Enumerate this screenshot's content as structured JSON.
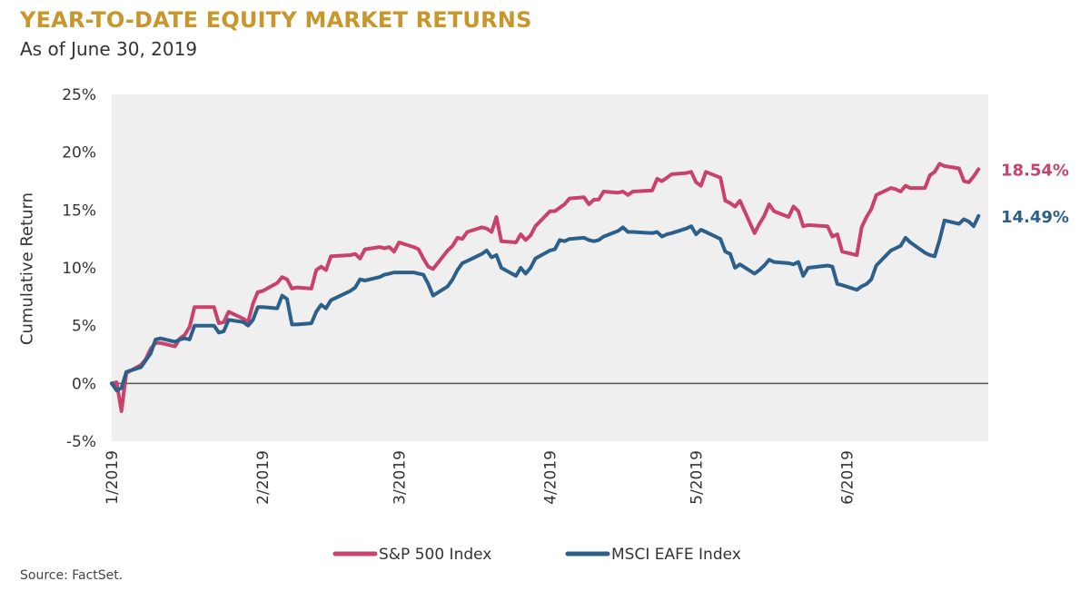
{
  "title": "YEAR-TO-DATE EQUITY MARKET RETURNS",
  "subtitle": "As of June 30, 2019",
  "source": "Source: FactSet.",
  "chart_data": {
    "type": "line",
    "ylabel": "Cumulative Return",
    "xlabel": "",
    "ylim": [
      -5,
      25
    ],
    "yticks": [
      -5,
      0,
      5,
      10,
      15,
      20,
      25
    ],
    "ytick_labels": [
      "-5%",
      "0%",
      "5%",
      "10%",
      "15%",
      "20%",
      "25%"
    ],
    "x_axis": {
      "start": "2019-01-01",
      "end": "2019-06-30"
    },
    "xticks": [
      "2019-01-01",
      "2019-02-01",
      "2019-03-01",
      "2019-04-01",
      "2019-05-01",
      "2019-06-01"
    ],
    "xtick_labels": [
      "1/2019",
      "2/2019",
      "3/2019",
      "4/2019",
      "5/2019",
      "6/2019"
    ],
    "grid": false,
    "background": "#EFEFEF",
    "legend_position": "bottom",
    "series": [
      {
        "name": "S&P 500 Index",
        "color": "#C8426B",
        "end_label": "18.54%",
        "points": [
          [
            "2019-01-01",
            0
          ],
          [
            "2019-01-02",
            0.1
          ],
          [
            "2019-01-03",
            -2.4
          ],
          [
            "2019-01-04",
            0.9
          ],
          [
            "2019-01-07",
            1.6
          ],
          [
            "2019-01-08",
            2.1
          ],
          [
            "2019-01-09",
            3.0
          ],
          [
            "2019-01-10",
            3.5
          ],
          [
            "2019-01-11",
            3.5
          ],
          [
            "2019-01-14",
            3.2
          ],
          [
            "2019-01-15",
            3.9
          ],
          [
            "2019-01-16",
            4.2
          ],
          [
            "2019-01-17",
            4.9
          ],
          [
            "2019-01-18",
            6.6
          ],
          [
            "2019-01-22",
            6.6
          ],
          [
            "2019-01-23",
            5.2
          ],
          [
            "2019-01-24",
            5.3
          ],
          [
            "2019-01-25",
            6.2
          ],
          [
            "2019-01-28",
            5.6
          ],
          [
            "2019-01-29",
            5.3
          ],
          [
            "2019-01-30",
            6.9
          ],
          [
            "2019-01-31",
            7.9
          ],
          [
            "2019-02-01",
            8.0
          ],
          [
            "2019-02-04",
            8.7
          ],
          [
            "2019-02-05",
            9.2
          ],
          [
            "2019-02-06",
            9.0
          ],
          [
            "2019-02-07",
            8.2
          ],
          [
            "2019-02-08",
            8.3
          ],
          [
            "2019-02-11",
            8.2
          ],
          [
            "2019-02-12",
            9.8
          ],
          [
            "2019-02-13",
            10.1
          ],
          [
            "2019-02-14",
            9.8
          ],
          [
            "2019-02-15",
            11.0
          ],
          [
            "2019-02-19",
            11.1
          ],
          [
            "2019-02-20",
            11.2
          ],
          [
            "2019-02-21",
            10.8
          ],
          [
            "2019-02-22",
            11.6
          ],
          [
            "2019-02-25",
            11.8
          ],
          [
            "2019-02-26",
            11.7
          ],
          [
            "2019-02-27",
            11.8
          ],
          [
            "2019-02-28",
            11.4
          ],
          [
            "2019-03-01",
            12.2
          ],
          [
            "2019-03-04",
            11.8
          ],
          [
            "2019-03-05",
            11.6
          ],
          [
            "2019-03-06",
            10.8
          ],
          [
            "2019-03-07",
            10.1
          ],
          [
            "2019-03-08",
            9.9
          ],
          [
            "2019-03-11",
            11.5
          ],
          [
            "2019-03-12",
            11.9
          ],
          [
            "2019-03-13",
            12.6
          ],
          [
            "2019-03-14",
            12.5
          ],
          [
            "2019-03-15",
            13.1
          ],
          [
            "2019-03-18",
            13.5
          ],
          [
            "2019-03-19",
            13.4
          ],
          [
            "2019-03-20",
            13.1
          ],
          [
            "2019-03-21",
            14.4
          ],
          [
            "2019-03-22",
            12.3
          ],
          [
            "2019-03-25",
            12.2
          ],
          [
            "2019-03-26",
            12.9
          ],
          [
            "2019-03-27",
            12.4
          ],
          [
            "2019-03-28",
            12.8
          ],
          [
            "2019-03-29",
            13.6
          ],
          [
            "2019-04-01",
            14.9
          ],
          [
            "2019-04-02",
            14.9
          ],
          [
            "2019-04-03",
            15.2
          ],
          [
            "2019-04-04",
            15.5
          ],
          [
            "2019-04-05",
            16.0
          ],
          [
            "2019-04-08",
            16.1
          ],
          [
            "2019-04-09",
            15.5
          ],
          [
            "2019-04-10",
            15.9
          ],
          [
            "2019-04-11",
            15.9
          ],
          [
            "2019-04-12",
            16.6
          ],
          [
            "2019-04-15",
            16.5
          ],
          [
            "2019-04-16",
            16.6
          ],
          [
            "2019-04-17",
            16.3
          ],
          [
            "2019-04-18",
            16.6
          ],
          [
            "2019-04-22",
            16.7
          ],
          [
            "2019-04-23",
            17.7
          ],
          [
            "2019-04-24",
            17.5
          ],
          [
            "2019-04-25",
            17.8
          ],
          [
            "2019-04-26",
            18.1
          ],
          [
            "2019-04-29",
            18.2
          ],
          [
            "2019-04-30",
            18.3
          ],
          [
            "2019-05-01",
            17.4
          ],
          [
            "2019-05-02",
            17.1
          ],
          [
            "2019-05-03",
            18.3
          ],
          [
            "2019-05-06",
            17.8
          ],
          [
            "2019-05-07",
            15.8
          ],
          [
            "2019-05-08",
            15.6
          ],
          [
            "2019-05-09",
            15.3
          ],
          [
            "2019-05-10",
            15.8
          ],
          [
            "2019-05-13",
            13.0
          ],
          [
            "2019-05-14",
            13.8
          ],
          [
            "2019-05-15",
            14.5
          ],
          [
            "2019-05-16",
            15.5
          ],
          [
            "2019-05-17",
            14.9
          ],
          [
            "2019-05-20",
            14.4
          ],
          [
            "2019-05-21",
            15.3
          ],
          [
            "2019-05-22",
            14.9
          ],
          [
            "2019-05-23",
            13.6
          ],
          [
            "2019-05-24",
            13.7
          ],
          [
            "2019-05-28",
            13.6
          ],
          [
            "2019-05-29",
            12.7
          ],
          [
            "2019-05-30",
            12.9
          ],
          [
            "2019-05-31",
            11.4
          ],
          [
            "2019-06-03",
            11.1
          ],
          [
            "2019-06-04",
            13.5
          ],
          [
            "2019-06-05",
            14.4
          ],
          [
            "2019-06-06",
            15.1
          ],
          [
            "2019-06-07",
            16.3
          ],
          [
            "2019-06-10",
            16.9
          ],
          [
            "2019-06-11",
            16.8
          ],
          [
            "2019-06-12",
            16.6
          ],
          [
            "2019-06-13",
            17.1
          ],
          [
            "2019-06-14",
            16.9
          ],
          [
            "2019-06-17",
            16.9
          ],
          [
            "2019-06-18",
            18.0
          ],
          [
            "2019-06-19",
            18.3
          ],
          [
            "2019-06-20",
            19.0
          ],
          [
            "2019-06-21",
            18.8
          ],
          [
            "2019-06-24",
            18.6
          ],
          [
            "2019-06-25",
            17.5
          ],
          [
            "2019-06-26",
            17.4
          ],
          [
            "2019-06-27",
            17.9
          ],
          [
            "2019-06-28",
            18.54
          ]
        ]
      },
      {
        "name": "MSCI EAFE Index",
        "color": "#2C5F8A",
        "end_label": "14.49%",
        "points": [
          [
            "2019-01-01",
            0
          ],
          [
            "2019-01-02",
            -0.6
          ],
          [
            "2019-01-03",
            -0.4
          ],
          [
            "2019-01-04",
            1.0
          ],
          [
            "2019-01-07",
            1.4
          ],
          [
            "2019-01-08",
            2.0
          ],
          [
            "2019-01-09",
            2.6
          ],
          [
            "2019-01-10",
            3.8
          ],
          [
            "2019-01-11",
            3.9
          ],
          [
            "2019-01-14",
            3.6
          ],
          [
            "2019-01-15",
            3.8
          ],
          [
            "2019-01-16",
            3.9
          ],
          [
            "2019-01-17",
            3.8
          ],
          [
            "2019-01-18",
            5.0
          ],
          [
            "2019-01-22",
            5.0
          ],
          [
            "2019-01-23",
            4.4
          ],
          [
            "2019-01-24",
            4.5
          ],
          [
            "2019-01-25",
            5.5
          ],
          [
            "2019-01-28",
            5.3
          ],
          [
            "2019-01-29",
            5.0
          ],
          [
            "2019-01-30",
            5.5
          ],
          [
            "2019-01-31",
            6.6
          ],
          [
            "2019-02-01",
            6.6
          ],
          [
            "2019-02-04",
            6.5
          ],
          [
            "2019-02-05",
            7.6
          ],
          [
            "2019-02-06",
            7.3
          ],
          [
            "2019-02-07",
            5.1
          ],
          [
            "2019-02-08",
            5.1
          ],
          [
            "2019-02-11",
            5.2
          ],
          [
            "2019-02-12",
            6.2
          ],
          [
            "2019-02-13",
            6.8
          ],
          [
            "2019-02-14",
            6.5
          ],
          [
            "2019-02-15",
            7.2
          ],
          [
            "2019-02-19",
            8.0
          ],
          [
            "2019-02-20",
            8.3
          ],
          [
            "2019-02-21",
            9.0
          ],
          [
            "2019-02-22",
            8.9
          ],
          [
            "2019-02-25",
            9.2
          ],
          [
            "2019-02-26",
            9.4
          ],
          [
            "2019-02-27",
            9.5
          ],
          [
            "2019-02-28",
            9.6
          ],
          [
            "2019-03-01",
            9.6
          ],
          [
            "2019-03-04",
            9.6
          ],
          [
            "2019-03-05",
            9.5
          ],
          [
            "2019-03-06",
            9.4
          ],
          [
            "2019-03-07",
            8.6
          ],
          [
            "2019-03-08",
            7.6
          ],
          [
            "2019-03-11",
            8.4
          ],
          [
            "2019-03-12",
            9.0
          ],
          [
            "2019-03-13",
            9.8
          ],
          [
            "2019-03-14",
            10.4
          ],
          [
            "2019-03-15",
            10.6
          ],
          [
            "2019-03-18",
            11.2
          ],
          [
            "2019-03-19",
            11.5
          ],
          [
            "2019-03-20",
            10.9
          ],
          [
            "2019-03-21",
            11.1
          ],
          [
            "2019-03-22",
            10.0
          ],
          [
            "2019-03-25",
            9.3
          ],
          [
            "2019-03-26",
            10.0
          ],
          [
            "2019-03-27",
            9.5
          ],
          [
            "2019-03-28",
            10.0
          ],
          [
            "2019-03-29",
            10.8
          ],
          [
            "2019-04-01",
            11.5
          ],
          [
            "2019-04-02",
            11.6
          ],
          [
            "2019-04-03",
            12.4
          ],
          [
            "2019-04-04",
            12.3
          ],
          [
            "2019-04-05",
            12.5
          ],
          [
            "2019-04-08",
            12.6
          ],
          [
            "2019-04-09",
            12.4
          ],
          [
            "2019-04-10",
            12.3
          ],
          [
            "2019-04-11",
            12.4
          ],
          [
            "2019-04-12",
            12.7
          ],
          [
            "2019-04-15",
            13.2
          ],
          [
            "2019-04-16",
            13.5
          ],
          [
            "2019-04-17",
            13.1
          ],
          [
            "2019-04-18",
            13.1
          ],
          [
            "2019-04-22",
            13.0
          ],
          [
            "2019-04-23",
            13.1
          ],
          [
            "2019-04-24",
            12.7
          ],
          [
            "2019-04-25",
            12.9
          ],
          [
            "2019-04-26",
            13.0
          ],
          [
            "2019-04-29",
            13.4
          ],
          [
            "2019-04-30",
            13.6
          ],
          [
            "2019-05-01",
            12.9
          ],
          [
            "2019-05-02",
            13.3
          ],
          [
            "2019-05-03",
            13.1
          ],
          [
            "2019-05-06",
            12.5
          ],
          [
            "2019-05-07",
            11.4
          ],
          [
            "2019-05-08",
            11.2
          ],
          [
            "2019-05-09",
            10.0
          ],
          [
            "2019-05-10",
            10.3
          ],
          [
            "2019-05-13",
            9.5
          ],
          [
            "2019-05-14",
            9.8
          ],
          [
            "2019-05-15",
            10.2
          ],
          [
            "2019-05-16",
            10.7
          ],
          [
            "2019-05-17",
            10.5
          ],
          [
            "2019-05-20",
            10.4
          ],
          [
            "2019-05-21",
            10.3
          ],
          [
            "2019-05-22",
            10.5
          ],
          [
            "2019-05-23",
            9.3
          ],
          [
            "2019-05-24",
            10.0
          ],
          [
            "2019-05-28",
            10.2
          ],
          [
            "2019-05-29",
            10.1
          ],
          [
            "2019-05-30",
            8.6
          ],
          [
            "2019-05-31",
            8.5
          ],
          [
            "2019-06-03",
            8.1
          ],
          [
            "2019-06-04",
            8.4
          ],
          [
            "2019-06-05",
            8.6
          ],
          [
            "2019-06-06",
            9.0
          ],
          [
            "2019-06-07",
            10.2
          ],
          [
            "2019-06-10",
            11.5
          ],
          [
            "2019-06-11",
            11.7
          ],
          [
            "2019-06-12",
            11.9
          ],
          [
            "2019-06-13",
            12.6
          ],
          [
            "2019-06-14",
            12.2
          ],
          [
            "2019-06-17",
            11.3
          ],
          [
            "2019-06-18",
            11.1
          ],
          [
            "2019-06-19",
            11.0
          ],
          [
            "2019-06-20",
            12.4
          ],
          [
            "2019-06-21",
            14.1
          ],
          [
            "2019-06-24",
            13.8
          ],
          [
            "2019-06-25",
            14.2
          ],
          [
            "2019-06-26",
            14.0
          ],
          [
            "2019-06-27",
            13.6
          ],
          [
            "2019-06-28",
            14.49
          ]
        ]
      }
    ]
  }
}
